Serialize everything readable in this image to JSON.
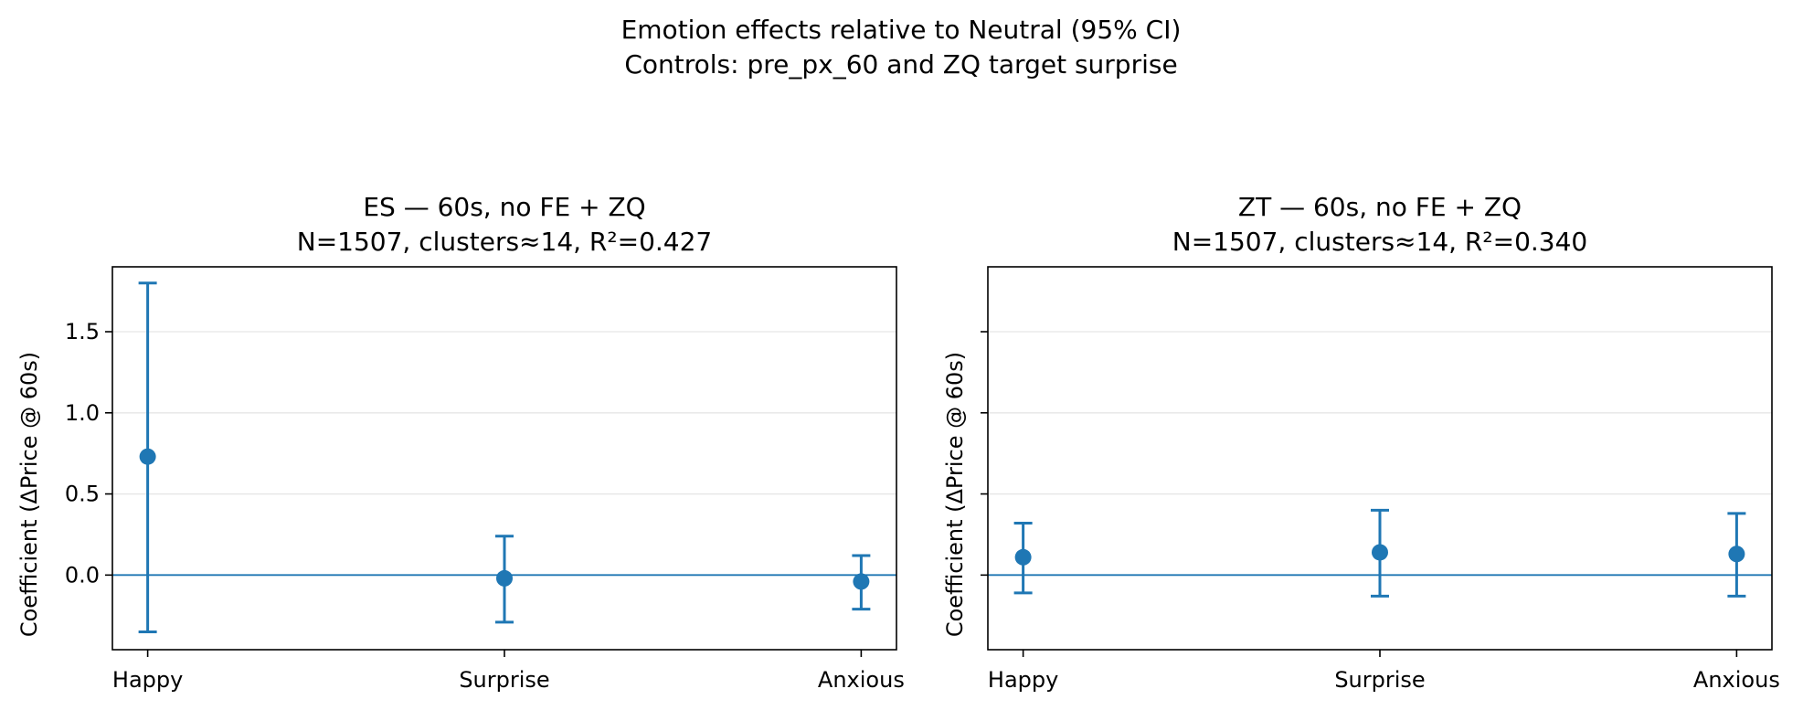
{
  "figure": {
    "suptitle_line1": "Emotion effects relative to Neutral (95% CI)",
    "suptitle_line2": "Controls: pre_px_60 and ZQ target surprise"
  },
  "colors": {
    "marker": "#1f77b4",
    "reference_line": "#1f77b4",
    "grid": "#e6e6e6",
    "axes": "#000000"
  },
  "chart_data": [
    {
      "type": "scatter",
      "error_bars": true,
      "title_line1": "ES — 60s, no FE + ZQ",
      "title_line2": "N=1507, clusters≈14, R²=0.427",
      "xlabel": "",
      "ylabel": "Coefficient (ΔPrice @ 60s)",
      "categories": [
        "Happy",
        "Surprise",
        "Anxious"
      ],
      "values": [
        0.73,
        -0.02,
        -0.04
      ],
      "ci_low": [
        -0.35,
        -0.29,
        -0.21
      ],
      "ci_high": [
        1.8,
        0.24,
        0.12
      ],
      "yticks": [
        0.0,
        0.5,
        1.0,
        1.5
      ],
      "ytick_labels": [
        "0.0",
        "0.5",
        "1.0",
        "1.5"
      ],
      "show_ytick_labels": true,
      "ylim": [
        -0.46,
        1.9
      ],
      "reference_line_y": 0,
      "grid": "y"
    },
    {
      "type": "scatter",
      "error_bars": true,
      "title_line1": "ZT — 60s, no FE + ZQ",
      "title_line2": "N=1507, clusters≈14, R²=0.340",
      "xlabel": "",
      "ylabel": "Coefficient (ΔPrice @ 60s)",
      "categories": [
        "Happy",
        "Surprise",
        "Anxious"
      ],
      "values": [
        0.11,
        0.14,
        0.13
      ],
      "ci_low": [
        -0.11,
        -0.13,
        -0.13
      ],
      "ci_high": [
        0.32,
        0.4,
        0.38
      ],
      "yticks": [
        0.0,
        0.5,
        1.0,
        1.5
      ],
      "ytick_labels": [
        "",
        "",
        "",
        ""
      ],
      "show_ytick_labels": false,
      "ylim": [
        -0.46,
        1.9
      ],
      "reference_line_y": 0,
      "grid": "y"
    }
  ]
}
